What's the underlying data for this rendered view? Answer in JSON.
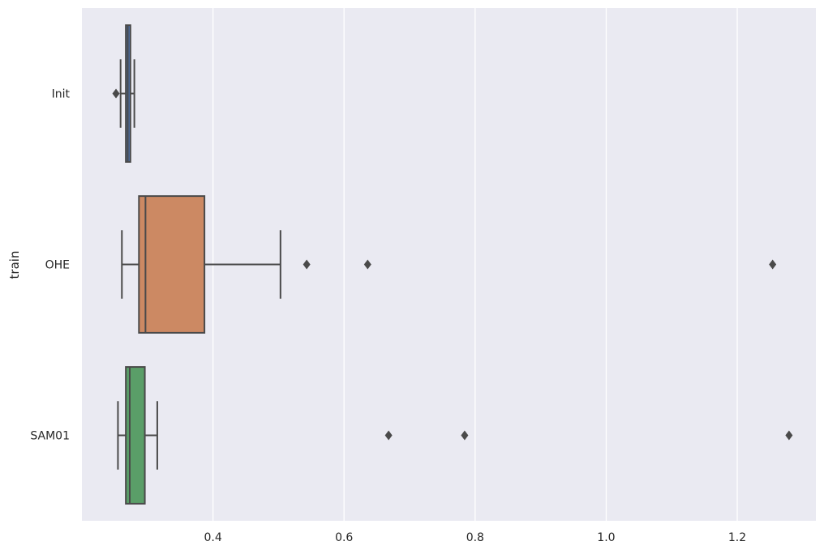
{
  "chart_data": {
    "type": "boxplot",
    "orientation": "horizontal",
    "title": "",
    "xlabel": "",
    "ylabel": "train",
    "xlim": [
      0.2,
      1.32
    ],
    "xticks": [
      0.4,
      0.6,
      0.8,
      1.0,
      1.2
    ],
    "xtick_labels": [
      "0.4",
      "0.6",
      "0.8",
      "1.0",
      "1.2"
    ],
    "grid": true,
    "background_color": "#eaeaf2",
    "grid_color": "#ffffff",
    "line_color": "#4a4a4a",
    "categories": [
      "Init",
      "OHE",
      "SAM01"
    ],
    "boxes": [
      {
        "category": "Init",
        "color": "#4c72b0",
        "whisker_low": 0.259,
        "q1": 0.267,
        "median": 0.27,
        "q3": 0.274,
        "whisker_high": 0.28,
        "outliers": [
          0.252
        ]
      },
      {
        "category": "OHE",
        "color": "#cc8963",
        "whisker_low": 0.261,
        "q1": 0.287,
        "median": 0.297,
        "q3": 0.387,
        "whisker_high": 0.503,
        "outliers": [
          0.543,
          0.636,
          1.254
        ]
      },
      {
        "category": "SAM01",
        "color": "#5a9e68",
        "whisker_low": 0.255,
        "q1": 0.267,
        "median": 0.273,
        "q3": 0.296,
        "whisker_high": 0.315,
        "outliers": [
          0.668,
          0.784,
          1.279
        ]
      }
    ]
  }
}
